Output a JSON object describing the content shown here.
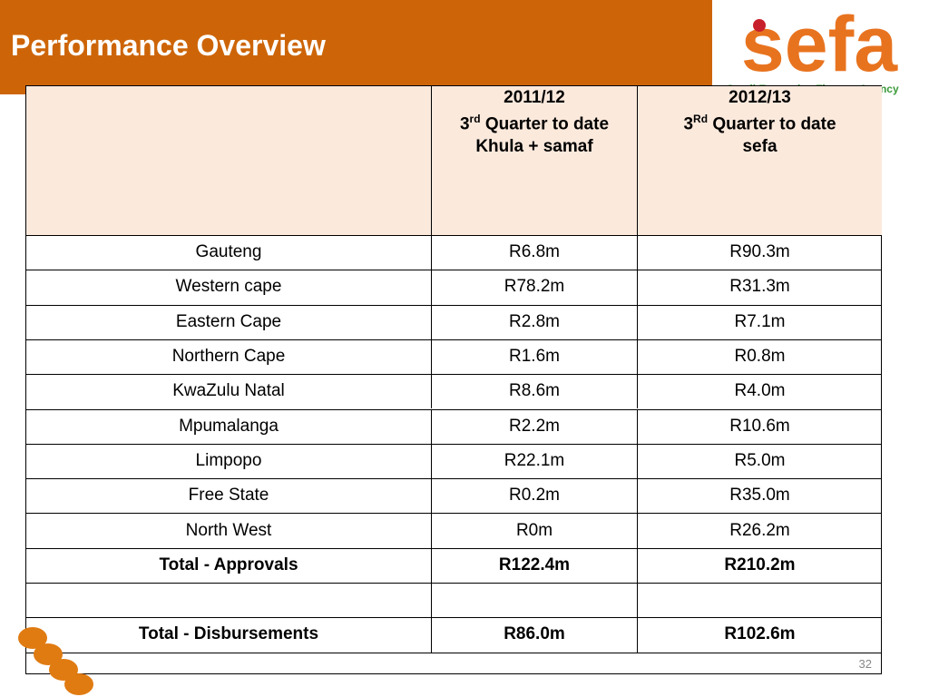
{
  "header": {
    "title": "Performance Overview"
  },
  "logo": {
    "brand": "sefa",
    "tagline": "Small Enterprise Finance Agency"
  },
  "table": {
    "columns": [
      {
        "year": "2011/12",
        "ordinal_number": "3",
        "ordinal_suffix": "rd",
        "period": "Quarter to date",
        "entity": "Khula + samaf"
      },
      {
        "year": "2012/13",
        "ordinal_number": "3",
        "ordinal_suffix": "Rd",
        "period": "Quarter to date",
        "entity": "sefa"
      }
    ],
    "rows": [
      [
        "Gauteng",
        "R6.8m",
        "R90.3m"
      ],
      [
        "Western cape",
        "R78.2m",
        "R31.3m"
      ],
      [
        "Eastern Cape",
        "R2.8m",
        "R7.1m"
      ],
      [
        "Northern Cape",
        "R1.6m",
        "R0.8m"
      ],
      [
        "KwaZulu Natal",
        "R8.6m",
        "R4.0m"
      ],
      [
        "Mpumalanga",
        "R2.2m",
        "R10.6m"
      ],
      [
        "Limpopo",
        "R22.1m",
        "R5.0m"
      ],
      [
        "Free State",
        "R0.2m",
        "R35.0m"
      ],
      [
        "North West",
        "R0m",
        "R26.2m"
      ]
    ],
    "total_approvals": [
      "Total - Approvals",
      "R122.4m",
      "R210.2m"
    ],
    "total_disbursements": [
      "Total - Disbursements",
      "R86.0m",
      "R102.6m"
    ]
  },
  "page_number": "32"
}
